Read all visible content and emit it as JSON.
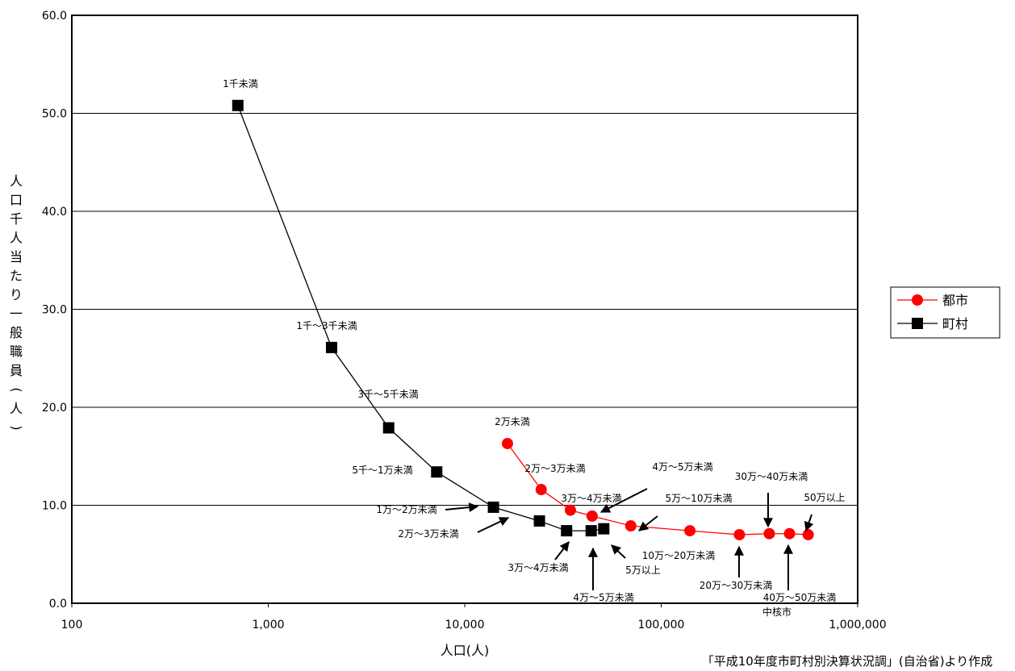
{
  "chart_data": {
    "type": "scatter",
    "title": "",
    "xlabel": "人口(人)",
    "ylabel": "人口千人当たり一般職員(人)",
    "x_scale": "log",
    "xlim": [
      100,
      1000000
    ],
    "ylim": [
      0,
      60
    ],
    "x_ticks": [
      "100",
      "1,000",
      "10,000",
      "100,000",
      "1,000,000"
    ],
    "y_ticks": [
      "0.0",
      "10.0",
      "20.0",
      "30.0",
      "40.0",
      "50.0",
      "60.0"
    ],
    "grid": "horizontal",
    "legend_position": "right",
    "series": [
      {
        "name": "都市",
        "color": "#ff0000",
        "marker": "circle",
        "points": [
          {
            "x": 16500,
            "y": 16.3
          },
          {
            "x": 24500,
            "y": 11.6
          },
          {
            "x": 34500,
            "y": 9.5
          },
          {
            "x": 44500,
            "y": 8.9
          },
          {
            "x": 70000,
            "y": 7.9
          },
          {
            "x": 140000,
            "y": 7.4
          },
          {
            "x": 250000,
            "y": 7.0
          },
          {
            "x": 355000,
            "y": 7.1
          },
          {
            "x": 450000,
            "y": 7.1
          },
          {
            "x": 560000,
            "y": 7.0
          }
        ]
      },
      {
        "name": "町村",
        "color": "#000000",
        "marker": "square",
        "points": [
          {
            "x": 700,
            "y": 50.8
          },
          {
            "x": 2100,
            "y": 26.1
          },
          {
            "x": 4100,
            "y": 17.9
          },
          {
            "x": 7200,
            "y": 13.4
          },
          {
            "x": 14000,
            "y": 9.8
          },
          {
            "x": 24000,
            "y": 8.4
          },
          {
            "x": 33000,
            "y": 7.4
          },
          {
            "x": 44000,
            "y": 7.4
          },
          {
            "x": 51000,
            "y": 7.6
          }
        ]
      }
    ],
    "annotations": [
      {
        "text": "1千未満"
      },
      {
        "text": "1千～3千未満"
      },
      {
        "text": "3千～5千未満"
      },
      {
        "text": "5千～1万未満"
      },
      {
        "text": "1万～2万未満"
      },
      {
        "text": "2万～3万未満"
      },
      {
        "text": "3万～4万未満"
      },
      {
        "text": "4万～5万未満"
      },
      {
        "text": "5万以上"
      },
      {
        "text": "2万未満"
      },
      {
        "text": "2万～3万未満"
      },
      {
        "text": "3万～4万未満"
      },
      {
        "text": "4万～5万未満"
      },
      {
        "text": "5万～10万未満"
      },
      {
        "text": "10万～20万未満"
      },
      {
        "text": "20万～30万未満"
      },
      {
        "text": "30万～40万未満"
      },
      {
        "text": "40万～50万未満"
      },
      {
        "text": "中核市"
      },
      {
        "text": "50万以上"
      }
    ],
    "source_note": "「平成10年度市町村別決算状況調」(自治省)より作成"
  }
}
